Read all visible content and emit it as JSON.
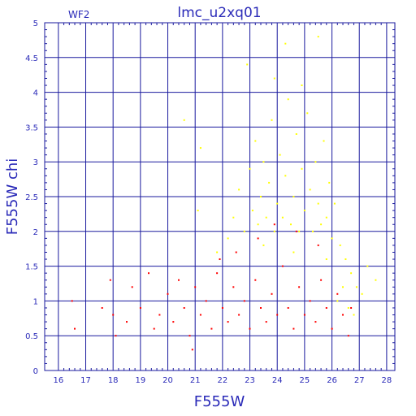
{
  "chart_data": {
    "type": "scatter",
    "title": "lmc_u2xq01",
    "chip_label": "WF2",
    "xlabel": "F555W",
    "ylabel": "F555W chi",
    "xlim": [
      15.5,
      28.3
    ],
    "ylim": [
      0,
      5
    ],
    "x_ticks": [
      16,
      17,
      18,
      19,
      20,
      21,
      22,
      23,
      24,
      25,
      26,
      27,
      28
    ],
    "y_ticks": [
      0,
      0.5,
      1,
      1.5,
      2,
      2.5,
      3,
      3.5,
      4,
      4.5,
      5
    ],
    "y_tick_labels": [
      "0",
      "0.5",
      "1",
      "1.5",
      "2",
      "2.5",
      "3",
      "3.5",
      "4",
      "4.5",
      "5"
    ],
    "grid": true,
    "colors": {
      "axis": "#1a1a9e",
      "grid": "#1a1a9e",
      "text": "#2a2ab8"
    },
    "series": [
      {
        "color": "#ffff00",
        "marker": "point",
        "values": [
          [
            22.4,
            2.2
          ],
          [
            22.6,
            2.6
          ],
          [
            22.8,
            2.0
          ],
          [
            23.0,
            2.9
          ],
          [
            23.1,
            2.3
          ],
          [
            23.2,
            3.3
          ],
          [
            23.3,
            2.1
          ],
          [
            23.4,
            2.5
          ],
          [
            23.5,
            3.0
          ],
          [
            23.6,
            2.2
          ],
          [
            23.7,
            2.7
          ],
          [
            23.8,
            3.6
          ],
          [
            23.9,
            2.0
          ],
          [
            24.0,
            2.4
          ],
          [
            24.1,
            3.1
          ],
          [
            24.2,
            2.2
          ],
          [
            24.3,
            2.8
          ],
          [
            24.4,
            3.9
          ],
          [
            24.5,
            2.1
          ],
          [
            24.6,
            2.5
          ],
          [
            24.7,
            3.4
          ],
          [
            24.8,
            2.0
          ],
          [
            24.9,
            2.9
          ],
          [
            25.0,
            2.3
          ],
          [
            25.1,
            3.7
          ],
          [
            25.2,
            2.6
          ],
          [
            25.3,
            2.0
          ],
          [
            25.4,
            3.0
          ],
          [
            25.5,
            2.4
          ],
          [
            25.6,
            2.1
          ],
          [
            25.7,
            3.3
          ],
          [
            25.8,
            2.2
          ],
          [
            25.9,
            2.7
          ],
          [
            26.0,
            1.9
          ],
          [
            26.1,
            2.4
          ],
          [
            26.3,
            1.8
          ],
          [
            26.5,
            1.6
          ],
          [
            26.7,
            1.4
          ],
          [
            26.9,
            1.2
          ],
          [
            27.1,
            1.1
          ],
          [
            27.3,
            1.5
          ],
          [
            27.6,
            1.3
          ],
          [
            22.9,
            4.4
          ],
          [
            23.9,
            4.2
          ],
          [
            24.3,
            4.7
          ],
          [
            25.5,
            4.8
          ],
          [
            24.9,
            4.1
          ],
          [
            21.2,
            3.2
          ],
          [
            20.6,
            3.6
          ],
          [
            21.1,
            2.3
          ],
          [
            23.5,
            1.8
          ],
          [
            24.6,
            1.7
          ],
          [
            25.8,
            1.6
          ],
          [
            26.4,
            1.2
          ],
          [
            26.6,
            0.9
          ],
          [
            26.8,
            0.8
          ],
          [
            26.2,
            1.0
          ],
          [
            22.2,
            1.9
          ],
          [
            21.8,
            1.7
          ]
        ]
      },
      {
        "color": "#ff0000",
        "marker": "point",
        "values": [
          [
            16.5,
            1.0
          ],
          [
            16.6,
            0.6
          ],
          [
            17.6,
            0.9
          ],
          [
            17.9,
            1.3
          ],
          [
            18.0,
            0.8
          ],
          [
            18.1,
            0.5
          ],
          [
            18.5,
            0.7
          ],
          [
            18.7,
            1.2
          ],
          [
            19.0,
            0.9
          ],
          [
            19.3,
            1.4
          ],
          [
            19.5,
            0.6
          ],
          [
            19.7,
            0.8
          ],
          [
            20.0,
            1.1
          ],
          [
            20.2,
            0.7
          ],
          [
            20.4,
            1.3
          ],
          [
            20.6,
            0.9
          ],
          [
            20.8,
            0.5
          ],
          [
            21.0,
            1.2
          ],
          [
            21.2,
            0.8
          ],
          [
            21.4,
            1.0
          ],
          [
            21.6,
            0.6
          ],
          [
            21.8,
            1.4
          ],
          [
            22.0,
            0.9
          ],
          [
            22.2,
            0.7
          ],
          [
            22.4,
            1.2
          ],
          [
            22.6,
            0.8
          ],
          [
            22.8,
            1.0
          ],
          [
            23.0,
            0.6
          ],
          [
            23.2,
            1.3
          ],
          [
            23.4,
            0.9
          ],
          [
            23.6,
            0.7
          ],
          [
            23.8,
            1.1
          ],
          [
            24.0,
            0.8
          ],
          [
            24.2,
            1.5
          ],
          [
            24.4,
            0.9
          ],
          [
            24.6,
            0.6
          ],
          [
            24.8,
            1.2
          ],
          [
            25.0,
            0.8
          ],
          [
            25.2,
            1.0
          ],
          [
            25.4,
            0.7
          ],
          [
            25.6,
            1.3
          ],
          [
            25.8,
            0.9
          ],
          [
            26.0,
            0.6
          ],
          [
            26.2,
            1.1
          ],
          [
            26.4,
            0.8
          ],
          [
            26.6,
            0.5
          ],
          [
            26.7,
            0.9
          ],
          [
            20.9,
            0.3
          ],
          [
            22.5,
            1.7
          ],
          [
            23.3,
            1.9
          ],
          [
            24.7,
            2.0
          ],
          [
            25.5,
            1.8
          ],
          [
            23.9,
            2.1
          ],
          [
            21.9,
            1.6
          ]
        ]
      }
    ]
  }
}
